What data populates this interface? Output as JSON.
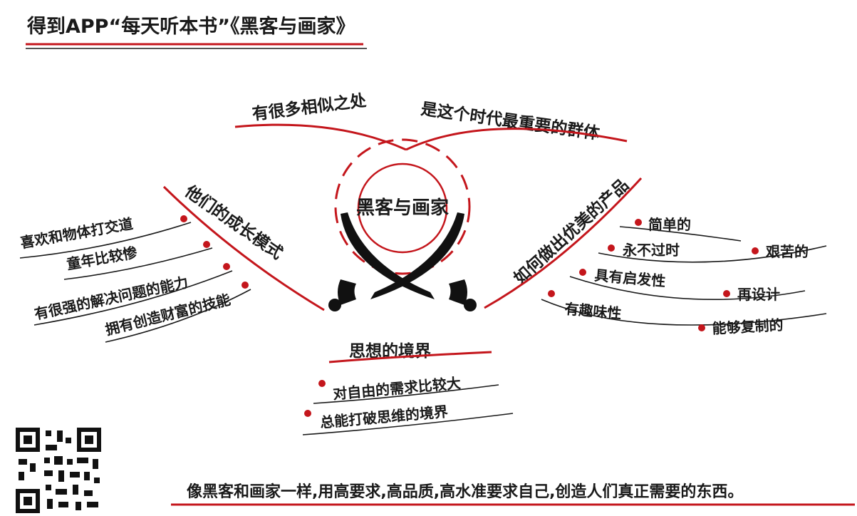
{
  "title": "得到APP“每天听本书”《黑客与画家》",
  "center": "黑客与画家",
  "top_branches": [
    "有很多相似之处",
    "是这个时代最重要的群体"
  ],
  "left_branch": {
    "label": "他们的成长模式",
    "items": [
      "喜欢和物体打交道",
      "童年比较惨",
      "有很强的解决问题的能力",
      "拥有创造财富的技能"
    ]
  },
  "right_branch": {
    "label": "如何做出优美的产品",
    "items": [
      "简单的",
      "永不过时",
      "具有启发性",
      "有趣味性"
    ],
    "items2": [
      "艰苦的",
      "再设计",
      "能够复制的"
    ]
  },
  "bottom_branch": {
    "label": "思想的境界",
    "items": [
      "对自由的需求比较大",
      "总能打破思维的境界"
    ]
  },
  "footer": "像黑客和画家一样,用高要求,高品质,高水准要求自己,创造人们真正需要的东西。",
  "colors": {
    "accent": "#c4161c",
    "ink": "#1a1a1a"
  },
  "qr_icon": "qr-code-icon"
}
